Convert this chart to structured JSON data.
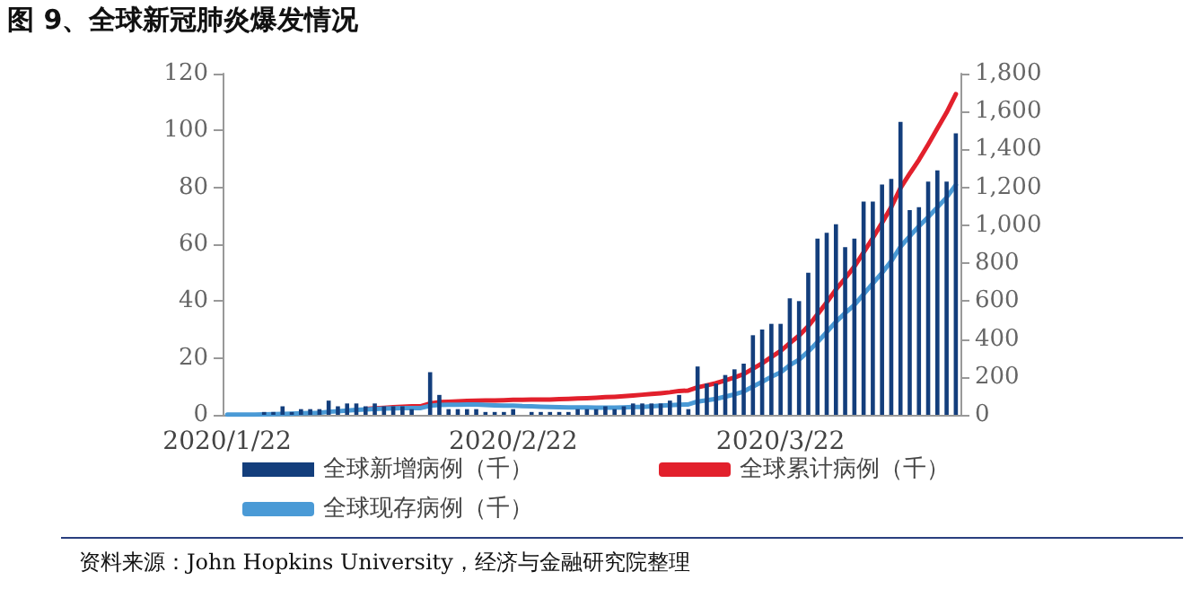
{
  "chart_data": {
    "type": "bar",
    "title": "图 9、全球新冠肺炎爆发情况",
    "annotations": [
      "资料来源：John Hopkins University，经济与金融研究院整理"
    ],
    "categories": [
      "2020/1/22",
      null,
      null,
      null,
      null,
      null,
      null,
      null,
      null,
      null,
      null,
      null,
      null,
      null,
      null,
      null,
      null,
      null,
      null,
      null,
      null,
      null,
      null,
      null,
      null,
      null,
      null,
      null,
      null,
      null,
      null,
      "2020/2/22",
      null,
      null,
      null,
      null,
      null,
      null,
      null,
      null,
      null,
      null,
      null,
      null,
      null,
      null,
      null,
      null,
      null,
      null,
      null,
      null,
      null,
      null,
      null,
      null,
      null,
      null,
      null,
      null,
      "2020/3/22",
      null,
      null,
      null,
      null,
      null,
      null,
      null,
      null,
      null,
      null,
      null,
      null,
      null,
      null,
      null,
      null,
      null,
      null,
      null
    ],
    "series": [
      {
        "name": "全球新增病例（千）",
        "color": "#133e7c",
        "values": [
          0,
          0,
          0,
          0,
          1,
          1,
          3,
          1,
          2,
          2,
          2,
          5,
          3,
          4,
          4,
          3,
          4,
          3,
          3,
          3,
          2,
          0,
          15,
          7,
          2,
          2,
          2,
          2,
          1,
          1,
          1,
          2,
          0,
          1,
          1,
          1,
          1,
          1,
          2,
          2,
          2,
          3,
          2,
          3,
          4,
          4,
          4,
          4,
          5,
          7,
          2,
          17,
          11,
          11,
          14,
          16,
          18,
          28,
          30,
          32,
          32,
          41,
          40,
          50,
          62,
          64,
          67,
          59,
          62,
          75,
          75,
          81,
          83,
          103,
          72,
          73,
          82,
          86,
          82,
          99
        ]
      },
      {
        "name": "全球累计病例（千）",
        "type": "line",
        "axis": "y2",
        "color": "#e2202c",
        "values": [
          null,
          null,
          null,
          null,
          null,
          null,
          null,
          null,
          null,
          null,
          null,
          null,
          null,
          null,
          null,
          31,
          34,
          37,
          40,
          43,
          45,
          45,
          60,
          67,
          69,
          71,
          73,
          75,
          76,
          76,
          77,
          79,
          79,
          80,
          80,
          81,
          83,
          84,
          86,
          88,
          90,
          93,
          95,
          98,
          102,
          106,
          110,
          114,
          119,
          126,
          128,
          145,
          156,
          167,
          182,
          197,
          215,
          243,
          272,
          305,
          337,
          378,
          418,
          468,
          530,
          593,
          661,
          720,
          782,
          857,
          933,
          1013,
          1096,
          1197,
          1272,
          1345,
          1426,
          1511,
          1595,
          1692
        ]
      },
      {
        "name": "全球现存病例（千）",
        "type": "line",
        "axis": "y2",
        "color": "#4a9ad6",
        "values": [
          1,
          1,
          1,
          1,
          2,
          3,
          5,
          6,
          8,
          10,
          11,
          16,
          19,
          23,
          26,
          28,
          31,
          33,
          34,
          36,
          36,
          36,
          48,
          52,
          53,
          53,
          54,
          54,
          52,
          50,
          49,
          49,
          46,
          45,
          43,
          41,
          40,
          39,
          39,
          39,
          38,
          38,
          38,
          39,
          41,
          42,
          45,
          48,
          51,
          53,
          55,
          70,
          77,
          84,
          96,
          108,
          123,
          149,
          174,
          201,
          224,
          262,
          291,
          334,
          384,
          436,
          491,
          537,
          580,
          637,
          693,
          749,
          811,
          887,
          942,
          995,
          1043,
          1095,
          1147,
          1213
        ]
      }
    ],
    "ylim": [
      0,
      120
    ],
    "yticks": [
      0,
      20,
      40,
      60,
      80,
      100,
      120
    ],
    "y2lim": [
      0,
      1800
    ],
    "y2ticks": [
      0,
      200,
      400,
      600,
      800,
      {
        "value": 1000,
        "label": "1,000"
      },
      {
        "value": 1200,
        "label": "1,200"
      },
      {
        "value": 1400,
        "label": "1,400"
      },
      {
        "value": 1600,
        "label": "1,600"
      },
      {
        "value": 1800,
        "label": "1,800"
      }
    ],
    "grid": false,
    "legend": "bottom",
    "line_style": "solid",
    "marker": "none"
  }
}
